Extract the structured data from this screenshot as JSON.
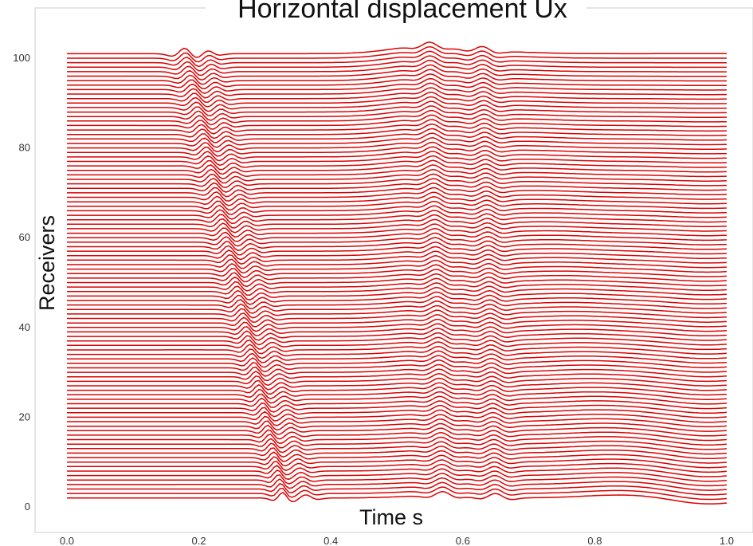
{
  "chart_data": {
    "type": "line",
    "title": "Horizontal displacement Ux",
    "xlabel": "Time s",
    "ylabel": "Receivers",
    "xlim": [
      0.0,
      1.0
    ],
    "ylim": [
      -3,
      110
    ],
    "x_ticks": [
      "0.0",
      "0.2",
      "0.4",
      "0.6",
      "0.8",
      "1.0"
    ],
    "y_ticks": [
      "0",
      "20",
      "40",
      "60",
      "80",
      "100"
    ],
    "grid": false,
    "trace_count": 100,
    "trace_color": "#dd0000",
    "receiver_range": [
      2,
      101
    ]
  }
}
